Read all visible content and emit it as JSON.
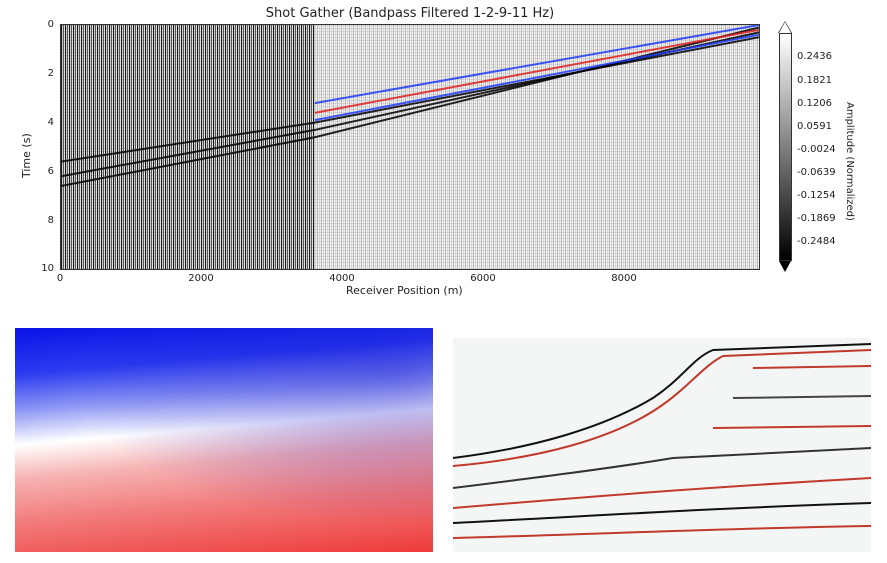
{
  "chart_data": [
    {
      "type": "heatmap",
      "title": "Shot Gather (Bandpass Filtered 1-2-9-11 Hz)",
      "xlabel": "Receiver Position (m)",
      "ylabel": "Time (s)",
      "xlim": [
        0,
        9900
      ],
      "ylim": [
        10,
        0
      ],
      "x_ticks": [
        "0",
        "2000",
        "4000",
        "6000",
        "8000"
      ],
      "x_tick_values": [
        0,
        2000,
        4000,
        6000,
        8000
      ],
      "y_ticks": [
        "0",
        "2",
        "4",
        "6",
        "8",
        "10"
      ],
      "y_tick_values": [
        0,
        2,
        4,
        6,
        8,
        10
      ],
      "colorbar": {
        "label": "Amplitude (Normalized)",
        "ticks": [
          "0.2436",
          "0.1821",
          "0.1206",
          "0.0591",
          "-0.0024",
          "-0.0639",
          "-0.1254",
          "-0.1869",
          "-0.2484"
        ],
        "tick_values": [
          0.2436,
          0.1821,
          0.1206,
          0.0591,
          -0.0024,
          -0.0639,
          -0.1254,
          -0.1869,
          -0.2484
        ],
        "range": [
          -0.28,
          0.28
        ],
        "colormap": "gray"
      },
      "events": [
        {
          "x": [
            0,
            3600,
            9900
          ],
          "y": [
            6.6,
            4.6,
            0.1
          ],
          "color": "#000000"
        },
        {
          "x": [
            0,
            3600,
            9900
          ],
          "y": [
            6.2,
            4.3,
            0.3
          ],
          "color": "#000000"
        },
        {
          "x": [
            0,
            3600,
            9900
          ],
          "y": [
            5.6,
            4.0,
            0.5
          ],
          "color": "#000000"
        },
        {
          "x": [
            3600,
            9900
          ],
          "y": [
            3.2,
            0.0
          ],
          "color": "#1f3cff"
        },
        {
          "x": [
            3600,
            9900
          ],
          "y": [
            3.6,
            0.2
          ],
          "color": "#e02020"
        },
        {
          "x": [
            3600,
            9900
          ],
          "y": [
            3.9,
            0.4
          ],
          "color": "#1f3cff"
        }
      ]
    },
    {
      "type": "heatmap",
      "colormap": "bwr"
    },
    {
      "type": "heatmap",
      "colormap": "seismic"
    }
  ]
}
